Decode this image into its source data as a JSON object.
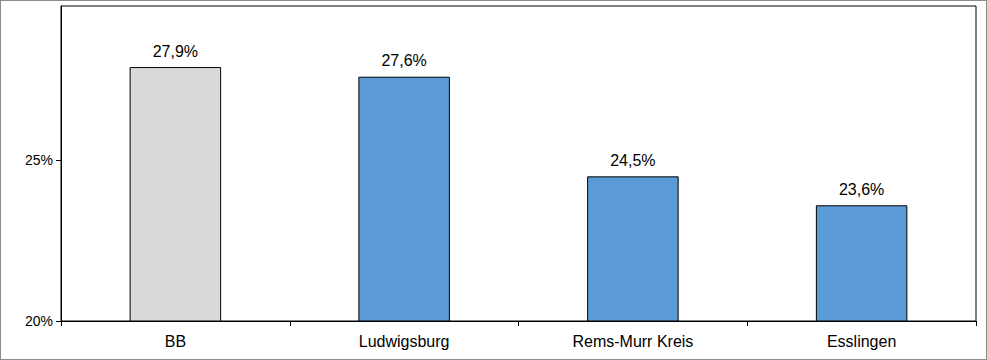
{
  "chart_data": {
    "type": "bar",
    "categories": [
      "BB",
      "Ludwigsburg",
      "Rems-Murr Kreis",
      "Esslingen"
    ],
    "values": [
      27.9,
      27.6,
      24.5,
      23.6
    ],
    "value_labels": [
      "27,9%",
      "27,6%",
      "24,5%",
      "23,6%"
    ],
    "colors": [
      "#d9d9d9",
      "#5b9bd5",
      "#5b9bd5",
      "#5b9bd5"
    ],
    "ylim": [
      20,
      29.8
    ],
    "yticks": [
      {
        "value": 20,
        "label": "20%"
      },
      {
        "value": 25,
        "label": "25%"
      }
    ],
    "grid": false,
    "data_labels": true
  }
}
